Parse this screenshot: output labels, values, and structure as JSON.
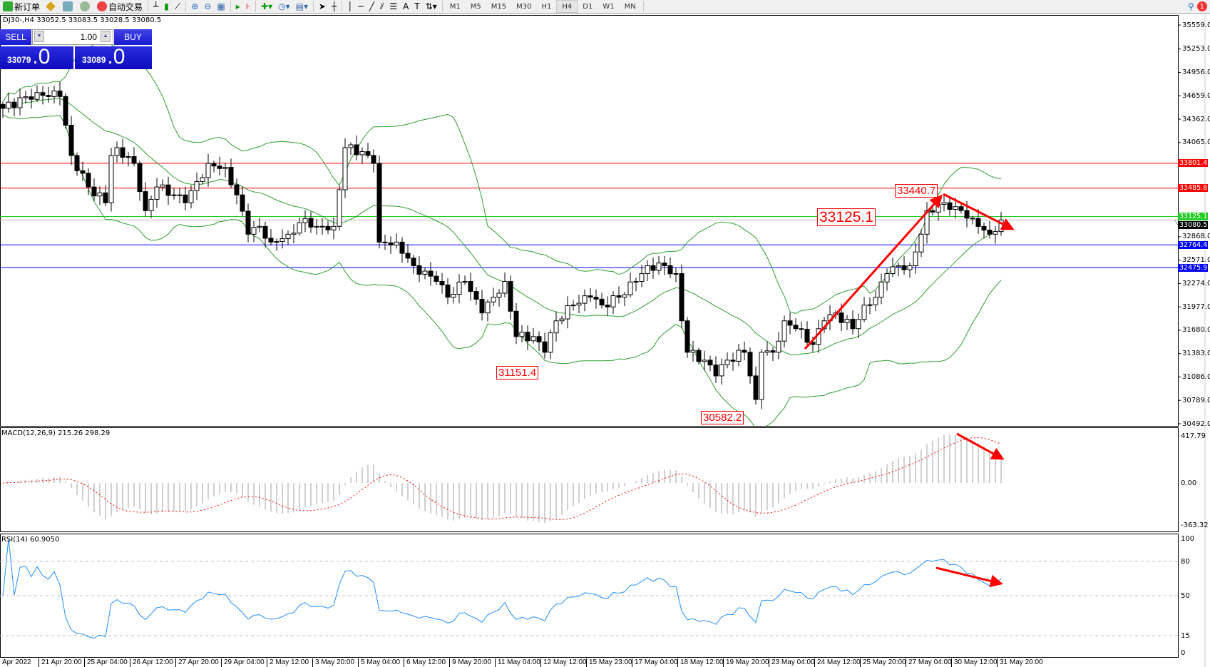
{
  "toolbar": {
    "new_order": "新订单",
    "auto_trading": "自动交易",
    "timeframes": [
      "M1",
      "M5",
      "M15",
      "M30",
      "H1",
      "H4",
      "D1",
      "W1",
      "MN"
    ],
    "active_timeframe": "H4",
    "notification_count": "1"
  },
  "chart": {
    "header": "DJ30-,H4  33052.5 33083.5 33028.5 33080.5",
    "symbol": "DJ30-",
    "timeframe": "H4"
  },
  "trade_panel": {
    "sell_label": "SELL",
    "buy_label": "BUY",
    "lot": "1.00",
    "sell_price_main": "33079",
    "sell_price_frac": ".0",
    "buy_price_main": "33089",
    "buy_price_frac": ".0"
  },
  "price_axis": [
    "35559.0",
    "35253.0",
    "34956.0",
    "34659.0",
    "34362.0",
    "34065.0",
    "32868.0",
    "32571.0",
    "32274.0",
    "31977.0",
    "31680.0",
    "31383.0",
    "31086.0",
    "30789.0",
    "30492.0"
  ],
  "levels": [
    {
      "value": "33801.4",
      "color": "#ff0000"
    },
    {
      "value": "33485.8",
      "color": "#ff0000"
    },
    {
      "value": "33125.1",
      "color": "#22cc22"
    },
    {
      "value": "33080.5",
      "color": "#000000"
    },
    {
      "value": "32764.4",
      "color": "#0000ff"
    },
    {
      "value": "32475.9",
      "color": "#0000ff"
    }
  ],
  "annotations": {
    "low1": "31151.4",
    "low2": "30582.2",
    "high": "33440.7",
    "current": "33125.1"
  },
  "macd": {
    "label": "MACD(12,26,9) 215.26 298.29",
    "axis": [
      "417.79",
      "0.00",
      "-363.32"
    ]
  },
  "rsi": {
    "label": "RSI(14) 60.9050",
    "axis": [
      "100",
      "80",
      "50",
      "15",
      "0"
    ]
  },
  "time_axis": [
    "Apr 2022",
    "21 Apr 20:00",
    "25 Apr 04:00",
    "26 Apr 12:00",
    "27 Apr 20:00",
    "29 Apr 04:00",
    "2 May 12:00",
    "3 May 20:00",
    "5 May 04:00",
    "6 May 12:00",
    "9 May 20:00",
    "11 May 04:00",
    "12 May 12:00",
    "15 May 23:00",
    "17 May 04:00",
    "18 May 12:00",
    "19 May 20:00",
    "23 May 04:00",
    "24 May 12:00",
    "25 May 20:00",
    "27 May 04:00",
    "30 May 12:00",
    "31 May 20:00"
  ],
  "chart_data": {
    "type": "candlestick",
    "price_range": [
      30492.0,
      35559.0
    ],
    "close_path": [
      [
        0,
        34500
      ],
      [
        6,
        34700
      ],
      [
        10,
        34650
      ],
      [
        12,
        33900
      ],
      [
        15,
        33500
      ],
      [
        18,
        33300
      ],
      [
        19,
        33900
      ],
      [
        20,
        34000
      ],
      [
        23,
        33800
      ],
      [
        25,
        33200
      ],
      [
        27,
        33500
      ],
      [
        30,
        33400
      ],
      [
        32,
        33300
      ],
      [
        36,
        33800
      ],
      [
        39,
        33750
      ],
      [
        41,
        33400
      ],
      [
        43,
        32900
      ],
      [
        45,
        33000
      ],
      [
        47,
        32800
      ],
      [
        50,
        32900
      ],
      [
        53,
        33100
      ],
      [
        55,
        33000
      ],
      [
        58,
        33000
      ],
      [
        60,
        34000
      ],
      [
        63,
        33950
      ],
      [
        65,
        33800
      ],
      [
        66,
        32800
      ],
      [
        69,
        32800
      ],
      [
        72,
        32500
      ],
      [
        76,
        32300
      ],
      [
        78,
        32100
      ],
      [
        81,
        32300
      ],
      [
        84,
        31900
      ],
      [
        86,
        32100
      ],
      [
        88,
        32300
      ],
      [
        90,
        31600
      ],
      [
        93,
        31600
      ],
      [
        95,
        31400
      ],
      [
        97,
        31800
      ],
      [
        100,
        32000
      ],
      [
        103,
        32100
      ],
      [
        105,
        32000
      ],
      [
        108,
        32100
      ],
      [
        111,
        32300
      ],
      [
        113,
        32500
      ],
      [
        116,
        32500
      ],
      [
        118,
        32400
      ],
      [
        119,
        31800
      ],
      [
        120,
        31400
      ],
      [
        123,
        31300
      ],
      [
        125,
        31100
      ],
      [
        127,
        31300
      ],
      [
        130,
        31400
      ],
      [
        131,
        31100
      ],
      [
        132,
        30800
      ],
      [
        133,
        31400
      ],
      [
        135,
        31400
      ],
      [
        137,
        31800
      ],
      [
        139,
        31700
      ],
      [
        142,
        31500
      ],
      [
        144,
        31800
      ],
      [
        146,
        31900
      ],
      [
        149,
        31700
      ],
      [
        151,
        32000
      ],
      [
        153,
        32100
      ],
      [
        155,
        32400
      ],
      [
        157,
        32500
      ],
      [
        159,
        32500
      ],
      [
        161,
        32900
      ],
      [
        162,
        33200
      ],
      [
        165,
        33300
      ],
      [
        167,
        33250
      ],
      [
        170,
        33100
      ],
      [
        173,
        32900
      ],
      [
        175,
        33080
      ]
    ],
    "macd_range": [
      -363.32,
      417.79
    ],
    "rsi_levels": [
      80,
      50,
      15
    ]
  }
}
